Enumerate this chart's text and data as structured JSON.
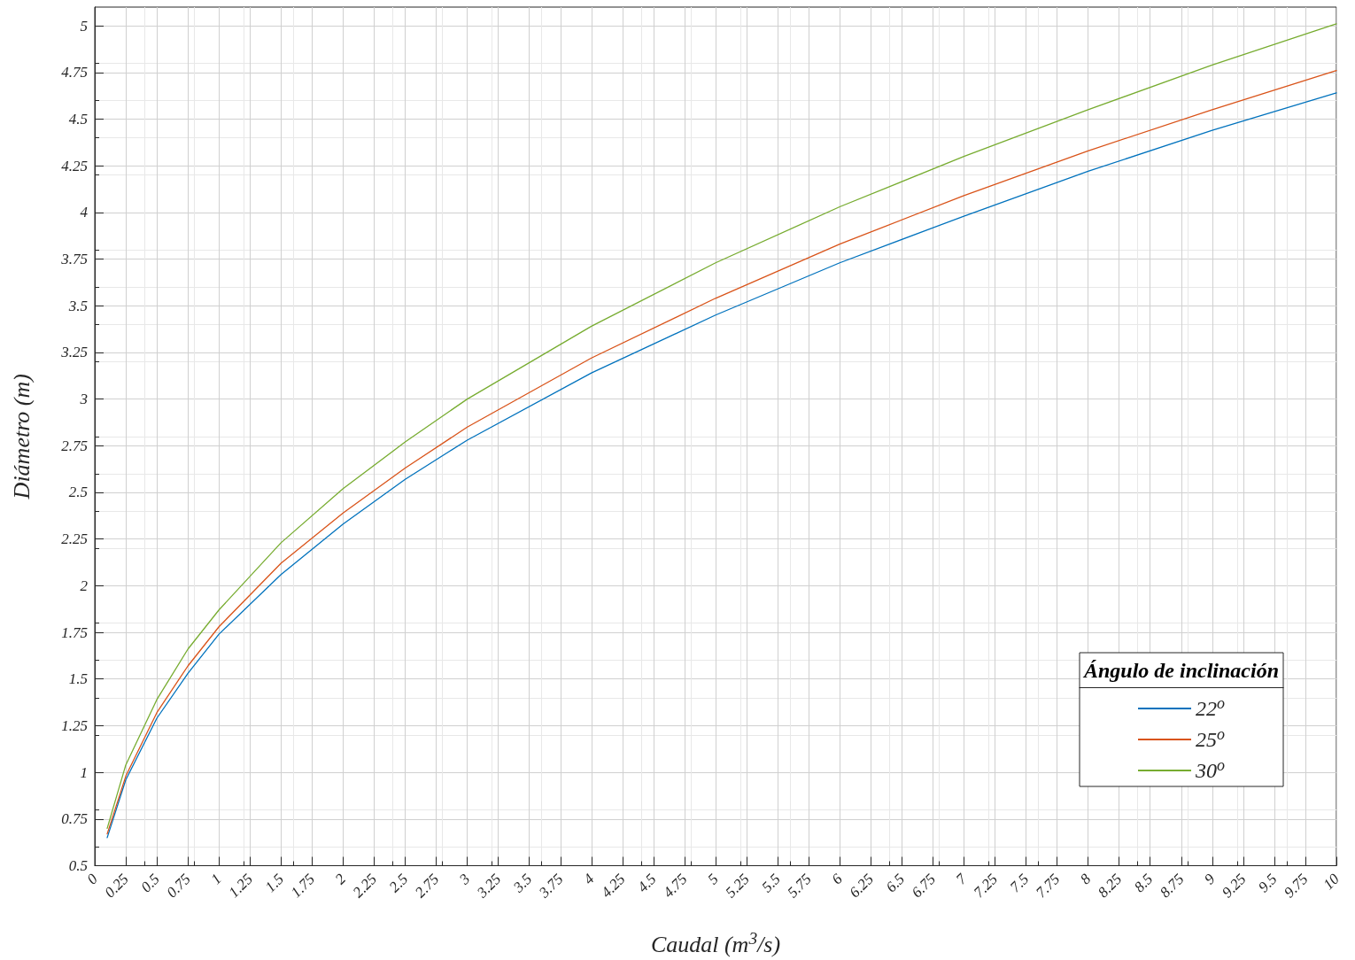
{
  "chart_data": {
    "type": "line",
    "xlabel": "Caudal (m$^{3}$/s)",
    "ylabel": "Diámetro (m)",
    "legend_title": "Ángulo de inclinación",
    "x": [
      0.1,
      0.25,
      0.5,
      0.75,
      1,
      1.5,
      2,
      2.5,
      3,
      4,
      5,
      6,
      7,
      8,
      9,
      10
    ],
    "series": [
      {
        "name": "22$^{o}$",
        "color": "#0072bd",
        "values": [
          0.65,
          0.96,
          1.29,
          1.53,
          1.74,
          2.06,
          2.33,
          2.57,
          2.78,
          3.14,
          3.45,
          3.73,
          3.98,
          4.22,
          4.44,
          4.64
        ]
      },
      {
        "name": "25$^{o}$",
        "color": "#d95319",
        "values": [
          0.67,
          0.98,
          1.32,
          1.57,
          1.78,
          2.12,
          2.39,
          2.63,
          2.85,
          3.22,
          3.54,
          3.83,
          4.09,
          4.33,
          4.55,
          4.76
        ]
      },
      {
        "name": "30$^{o}$",
        "color": "#77ac30",
        "values": [
          0.7,
          1.04,
          1.39,
          1.66,
          1.87,
          2.23,
          2.52,
          2.77,
          3.0,
          3.39,
          3.73,
          4.03,
          4.3,
          4.55,
          4.79,
          5.01
        ]
      }
    ],
    "xlim": [
      0,
      10
    ],
    "xticks": [
      0,
      0.25,
      0.5,
      0.75,
      1,
      1.25,
      1.5,
      1.75,
      2,
      2.25,
      2.5,
      2.75,
      3,
      3.25,
      3.5,
      3.75,
      4,
      4.25,
      4.5,
      4.75,
      5,
      5.25,
      5.5,
      5.75,
      6,
      6.25,
      6.5,
      6.75,
      7,
      7.25,
      7.5,
      7.75,
      8,
      8.25,
      8.5,
      8.75,
      9,
      9.25,
      9.5,
      9.75,
      10
    ],
    "ylim": [
      0.5,
      5.1
    ],
    "yticks": [
      0.5,
      0.75,
      1,
      1.25,
      1.5,
      1.75,
      2,
      2.25,
      2.5,
      2.75,
      3,
      3.25,
      3.5,
      3.75,
      4,
      4.25,
      4.5,
      4.75,
      5
    ],
    "grid": true,
    "legend": "bottom right",
    "marker": "none",
    "line_style": "solid"
  }
}
